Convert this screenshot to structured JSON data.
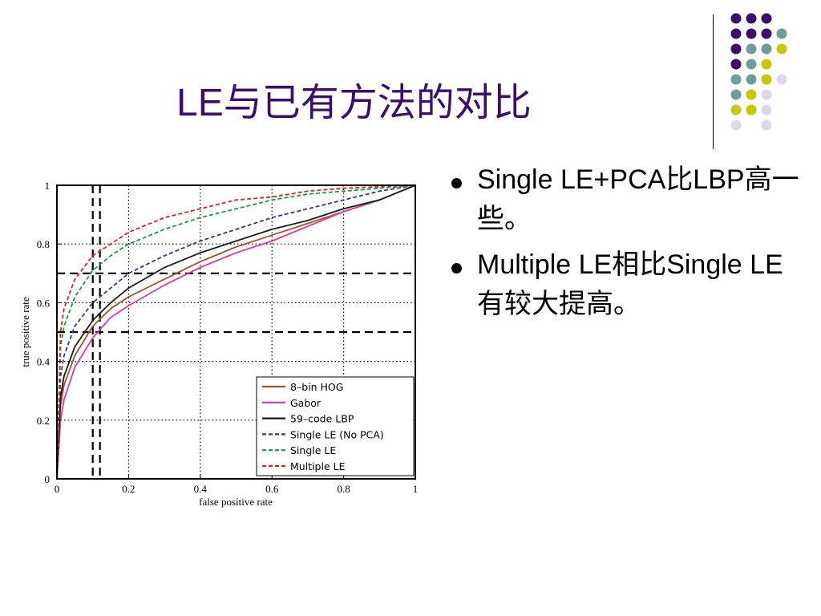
{
  "slide": {
    "title": "LE与已有方法的对比"
  },
  "decoration": {
    "colors": {
      "purple": "#3d0d6e",
      "teal": "#6f9b9b",
      "lime": "#c8c800",
      "lavender": "#d9d9ea"
    },
    "dots": [
      [
        "purple",
        "purple",
        "purple",
        ""
      ],
      [
        "purple",
        "purple",
        "purple",
        "teal"
      ],
      [
        "purple",
        "teal",
        "teal",
        "lime"
      ],
      [
        "purple",
        "teal",
        "lime",
        ""
      ],
      [
        "teal",
        "teal",
        "lime",
        "lavender"
      ],
      [
        "teal",
        "lime",
        "lavender",
        ""
      ],
      [
        "lime",
        "lime",
        "lavender",
        ""
      ],
      [
        "lavender",
        "",
        "lavender",
        ""
      ]
    ]
  },
  "bullets": [
    {
      "text": "Single LE+PCA比LBP高一些。"
    },
    {
      "text": "Multiple LE相比Single LE有较大提高。"
    }
  ],
  "chart_data": {
    "type": "line",
    "xlabel": "false positive rate",
    "ylabel": "true positive rate",
    "xlim": [
      0,
      1
    ],
    "ylim": [
      0,
      1
    ],
    "xticks": [
      "0",
      "0.2",
      "0.4",
      "0.6",
      "0.8",
      "1"
    ],
    "yticks": [
      "0",
      "0.2",
      "0.4",
      "0.6",
      "0.8",
      "1"
    ],
    "grid": true,
    "legend_position": "bottom-right",
    "reference_lines": {
      "vertical": [
        0.1,
        0.12
      ],
      "horizontal": [
        0.5,
        0.7
      ]
    },
    "series": [
      {
        "name": "8–bin HOG",
        "color": "#a0522d",
        "dash": "solid",
        "x": [
          0,
          0.01,
          0.02,
          0.05,
          0.1,
          0.15,
          0.2,
          0.3,
          0.4,
          0.5,
          0.6,
          0.7,
          0.8,
          0.9,
          1.0
        ],
        "y": [
          0,
          0.25,
          0.32,
          0.42,
          0.52,
          0.58,
          0.62,
          0.68,
          0.74,
          0.79,
          0.83,
          0.87,
          0.91,
          0.95,
          1.0
        ]
      },
      {
        "name": "Gabor",
        "color": "#e0389c",
        "dash": "solid",
        "x": [
          0,
          0.01,
          0.02,
          0.05,
          0.1,
          0.15,
          0.2,
          0.3,
          0.4,
          0.5,
          0.6,
          0.7,
          0.8,
          0.9,
          1.0
        ],
        "y": [
          0,
          0.2,
          0.27,
          0.38,
          0.48,
          0.55,
          0.59,
          0.66,
          0.72,
          0.77,
          0.81,
          0.86,
          0.91,
          0.95,
          1.0
        ]
      },
      {
        "name": "59–code LBP",
        "color": "#1a1a1a",
        "dash": "solid",
        "x": [
          0,
          0.01,
          0.02,
          0.05,
          0.1,
          0.15,
          0.2,
          0.3,
          0.4,
          0.5,
          0.6,
          0.7,
          0.8,
          0.9,
          1.0
        ],
        "y": [
          0,
          0.28,
          0.35,
          0.45,
          0.54,
          0.6,
          0.65,
          0.72,
          0.77,
          0.81,
          0.85,
          0.88,
          0.92,
          0.95,
          1.0
        ]
      },
      {
        "name": "Single LE (No PCA)",
        "color": "#2b3a8c",
        "dash": "dashed",
        "x": [
          0,
          0.01,
          0.02,
          0.05,
          0.1,
          0.15,
          0.2,
          0.3,
          0.4,
          0.5,
          0.6,
          0.7,
          0.8,
          0.9,
          1.0
        ],
        "y": [
          0,
          0.35,
          0.42,
          0.52,
          0.6,
          0.65,
          0.7,
          0.76,
          0.81,
          0.85,
          0.89,
          0.92,
          0.95,
          0.98,
          1.0
        ]
      },
      {
        "name": "Single LE",
        "color": "#1a9c3a",
        "dash": "dashed",
        "x": [
          0,
          0.01,
          0.02,
          0.05,
          0.1,
          0.15,
          0.2,
          0.3,
          0.4,
          0.5,
          0.6,
          0.7,
          0.8,
          0.9,
          1.0
        ],
        "y": [
          0,
          0.45,
          0.52,
          0.62,
          0.71,
          0.76,
          0.8,
          0.85,
          0.89,
          0.92,
          0.95,
          0.97,
          0.98,
          0.99,
          1.0
        ]
      },
      {
        "name": "Multiple LE",
        "color": "#e02020",
        "dash": "dashed",
        "x": [
          0,
          0.01,
          0.02,
          0.05,
          0.1,
          0.15,
          0.2,
          0.3,
          0.4,
          0.5,
          0.6,
          0.7,
          0.8,
          0.9,
          1.0
        ],
        "y": [
          0,
          0.5,
          0.58,
          0.68,
          0.76,
          0.8,
          0.84,
          0.89,
          0.92,
          0.95,
          0.96,
          0.98,
          0.99,
          0.995,
          1.0
        ]
      }
    ]
  }
}
